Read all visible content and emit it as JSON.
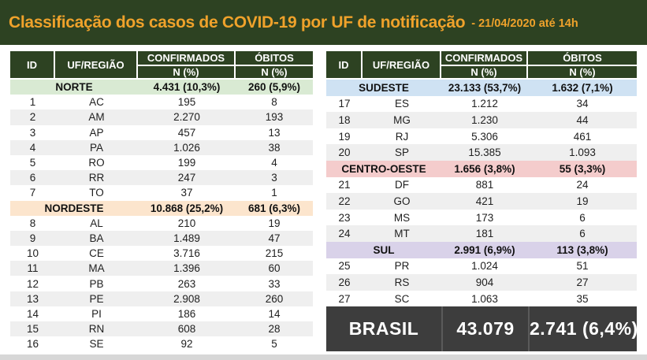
{
  "banner": {
    "title": "Classificação dos casos de COVID-19 por UF de notificação",
    "date": "- 21/04/2020 até 14h"
  },
  "columns": {
    "id": "ID",
    "uf": "UF/REGIÃO",
    "confirmados": "CONFIRMADOS",
    "obitos": "ÓBITOS",
    "n_pct": "N (%)"
  },
  "colors": {
    "banner_green": "#2d4222",
    "title_gold": "#efa22b",
    "header_cell_green": "#2d4222",
    "alt_row_gray": "#efefef",
    "brasil_row_dark": "#3d3d3d",
    "norte": "#d9ead3",
    "nordeste": "#fce5cd",
    "sudeste": "#cfe2f3",
    "centro_oeste": "#f4cccc",
    "sul": "#d9d2e9"
  },
  "chart_data": {
    "type": "table",
    "title": "Classificação dos casos de COVID-19 por UF de notificação",
    "as_of": "21/04/2020 até 14h",
    "tables": [
      {
        "side": "left",
        "sections": [
          {
            "region": "NORTE",
            "confirmados": "4.431 (10,3%)",
            "obitos": "260 (5,9%)",
            "color": "#d9ead3",
            "rows": [
              {
                "id": "1",
                "uf": "AC",
                "confirmados": "195",
                "obitos": "8"
              },
              {
                "id": "2",
                "uf": "AM",
                "confirmados": "2.270",
                "obitos": "193"
              },
              {
                "id": "3",
                "uf": "AP",
                "confirmados": "457",
                "obitos": "13"
              },
              {
                "id": "4",
                "uf": "PA",
                "confirmados": "1.026",
                "obitos": "38"
              },
              {
                "id": "5",
                "uf": "RO",
                "confirmados": "199",
                "obitos": "4"
              },
              {
                "id": "6",
                "uf": "RR",
                "confirmados": "247",
                "obitos": "3"
              },
              {
                "id": "7",
                "uf": "TO",
                "confirmados": "37",
                "obitos": "1"
              }
            ]
          },
          {
            "region": "NORDESTE",
            "confirmados": "10.868 (25,2%)",
            "obitos": "681 (6,3%)",
            "color": "#fce5cd",
            "rows": [
              {
                "id": "8",
                "uf": "AL",
                "confirmados": "210",
                "obitos": "19"
              },
              {
                "id": "9",
                "uf": "BA",
                "confirmados": "1.489",
                "obitos": "47"
              },
              {
                "id": "10",
                "uf": "CE",
                "confirmados": "3.716",
                "obitos": "215"
              },
              {
                "id": "11",
                "uf": "MA",
                "confirmados": "1.396",
                "obitos": "60"
              },
              {
                "id": "12",
                "uf": "PB",
                "confirmados": "263",
                "obitos": "33"
              },
              {
                "id": "13",
                "uf": "PE",
                "confirmados": "2.908",
                "obitos": "260"
              },
              {
                "id": "14",
                "uf": "PI",
                "confirmados": "186",
                "obitos": "14"
              },
              {
                "id": "15",
                "uf": "RN",
                "confirmados": "608",
                "obitos": "28"
              },
              {
                "id": "16",
                "uf": "SE",
                "confirmados": "92",
                "obitos": "5"
              }
            ]
          }
        ]
      },
      {
        "side": "right",
        "sections": [
          {
            "region": "SUDESTE",
            "confirmados": "23.133 (53,7%)",
            "obitos": "1.632 (7,1%)",
            "color": "#cfe2f3",
            "rows": [
              {
                "id": "17",
                "uf": "ES",
                "confirmados": "1.212",
                "obitos": "34"
              },
              {
                "id": "18",
                "uf": "MG",
                "confirmados": "1.230",
                "obitos": "44"
              },
              {
                "id": "19",
                "uf": "RJ",
                "confirmados": "5.306",
                "obitos": "461"
              },
              {
                "id": "20",
                "uf": "SP",
                "confirmados": "15.385",
                "obitos": "1.093"
              }
            ]
          },
          {
            "region": "CENTRO-OESTE",
            "confirmados": "1.656 (3,8%)",
            "obitos": "55 (3,3%)",
            "color": "#f4cccc",
            "rows": [
              {
                "id": "21",
                "uf": "DF",
                "confirmados": "881",
                "obitos": "24"
              },
              {
                "id": "22",
                "uf": "GO",
                "confirmados": "421",
                "obitos": "19"
              },
              {
                "id": "23",
                "uf": "MS",
                "confirmados": "173",
                "obitos": "6"
              },
              {
                "id": "24",
                "uf": "MT",
                "confirmados": "181",
                "obitos": "6"
              }
            ]
          },
          {
            "region": "SUL",
            "confirmados": "2.991 (6,9%)",
            "obitos": "113 (3,8%)",
            "color": "#d9d2e9",
            "rows": [
              {
                "id": "25",
                "uf": "PR",
                "confirmados": "1.024",
                "obitos": "51"
              },
              {
                "id": "26",
                "uf": "RS",
                "confirmados": "904",
                "obitos": "27"
              },
              {
                "id": "27",
                "uf": "SC",
                "confirmados": "1.063",
                "obitos": "35"
              }
            ]
          }
        ]
      }
    ],
    "total": {
      "label": "BRASIL",
      "confirmados": "43.079",
      "obitos": "2.741 (6,4%)"
    }
  }
}
